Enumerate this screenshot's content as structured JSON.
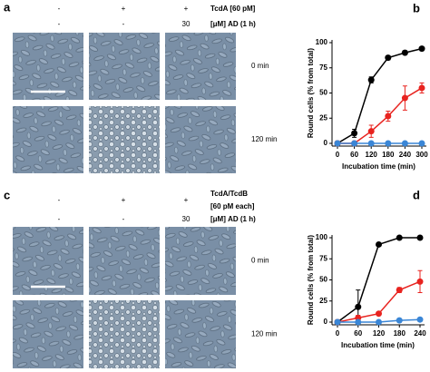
{
  "panel_a": {
    "panel_label": "a",
    "headers": [
      [
        "-",
        "+",
        "+"
      ],
      [
        "-",
        "-",
        "30"
      ]
    ],
    "condition_labels": [
      "TcdA [60 pM]",
      "[μM] AD (1 h)"
    ],
    "row_labels": [
      "0 min",
      "120 min"
    ]
  },
  "panel_c": {
    "panel_label": "c",
    "headers": [
      [
        "-",
        "+",
        "+"
      ],
      [
        "-",
        "-",
        "30"
      ]
    ],
    "condition_labels": [
      "TcdA/TcdB",
      "[60 pM each]",
      "[μM] AD (1 h)"
    ],
    "row_labels": [
      "0 min",
      "120 min"
    ]
  },
  "chart_data": [
    {
      "type": "line",
      "panel_label": "b",
      "x_label": "Incubation time (min)",
      "y_label": "Round cells (% from total)",
      "x": [
        0,
        60,
        120,
        180,
        240,
        300
      ],
      "xlim": [
        0,
        300
      ],
      "xticks": [
        0,
        60,
        120,
        180,
        240,
        300
      ],
      "ylim": [
        0,
        100
      ],
      "yticks": [
        0,
        25,
        50,
        75,
        100
      ],
      "series": [
        {
          "color": "#000000",
          "values": [
            0,
            10,
            63,
            85,
            90,
            94
          ],
          "errors": [
            0,
            4,
            3,
            2,
            2,
            1
          ]
        },
        {
          "color": "#e8231f",
          "values": [
            0,
            0,
            12,
            27,
            45,
            55
          ],
          "errors": [
            0,
            1,
            6,
            5,
            12,
            5
          ]
        },
        {
          "color": "#3a86d6",
          "values": [
            0,
            0,
            0,
            0,
            0,
            0
          ],
          "errors": [
            0,
            0,
            0,
            0,
            0,
            0
          ]
        }
      ]
    },
    {
      "type": "line",
      "panel_label": "d",
      "x_label": "Incubation time (min)",
      "y_label": "Round cells (% from total)",
      "x": [
        0,
        60,
        120,
        180,
        240
      ],
      "xlim": [
        0,
        240
      ],
      "xticks": [
        0,
        60,
        120,
        180,
        240
      ],
      "ylim": [
        0,
        100
      ],
      "yticks": [
        0,
        25,
        50,
        75,
        100
      ],
      "series": [
        {
          "color": "#000000",
          "values": [
            0,
            18,
            92,
            100,
            100
          ],
          "errors": [
            0,
            20,
            2,
            1,
            1
          ]
        },
        {
          "color": "#e8231f",
          "values": [
            0,
            5,
            10,
            38,
            48
          ],
          "errors": [
            0,
            3,
            2,
            3,
            13
          ]
        },
        {
          "color": "#3a86d6",
          "values": [
            0,
            0,
            0,
            2,
            3
          ],
          "errors": [
            0,
            1,
            1,
            1,
            1
          ]
        }
      ]
    }
  ]
}
